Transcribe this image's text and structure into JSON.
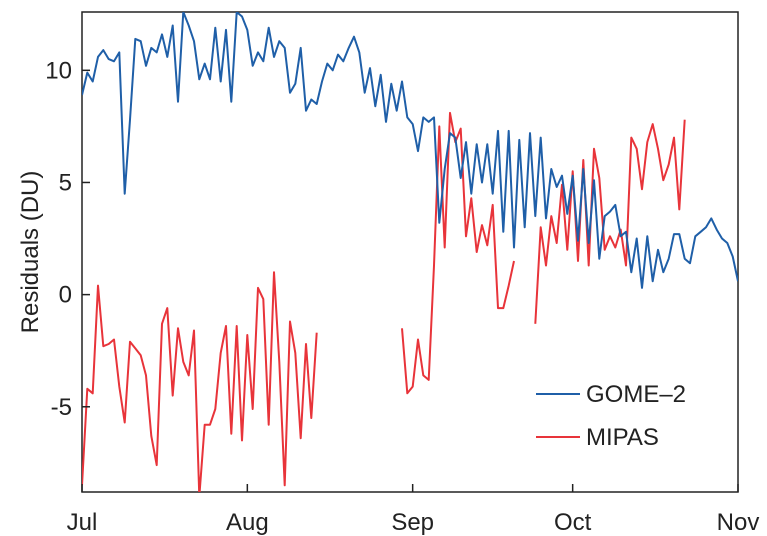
{
  "chart_data": {
    "type": "line",
    "title": "",
    "xlabel": "",
    "ylabel": "Residuals (DU)",
    "x_axis": {
      "range": [
        "2007-07-01",
        "2007-11-01"
      ],
      "ticks": [
        {
          "date": "2007-07-01",
          "label": "Jul"
        },
        {
          "date": "2007-08-01",
          "label": "Aug"
        },
        {
          "date": "2007-09-01",
          "label": "Sep"
        },
        {
          "date": "2007-10-01",
          "label": "Oct"
        },
        {
          "date": "2007-11-01",
          "label": "Nov"
        }
      ]
    },
    "y_axis": {
      "range": [
        -8.8,
        12.6
      ],
      "ticks": [
        -5,
        0,
        5,
        10
      ]
    },
    "grid": false,
    "legend_position": "bottom-right",
    "series": [
      {
        "name": "GOME–2",
        "color": "#1f5fa8",
        "points": [
          [
            "2007-07-01",
            8.9
          ],
          [
            "2007-07-02",
            9.9
          ],
          [
            "2007-07-03",
            9.5
          ],
          [
            "2007-07-04",
            10.6
          ],
          [
            "2007-07-05",
            10.9
          ],
          [
            "2007-07-06",
            10.5
          ],
          [
            "2007-07-07",
            10.4
          ],
          [
            "2007-07-08",
            10.8
          ],
          [
            "2007-07-09",
            4.5
          ],
          [
            "2007-07-10",
            7.8
          ],
          [
            "2007-07-11",
            11.4
          ],
          [
            "2007-07-12",
            11.3
          ],
          [
            "2007-07-13",
            10.2
          ],
          [
            "2007-07-14",
            11.0
          ],
          [
            "2007-07-15",
            10.8
          ],
          [
            "2007-07-16",
            11.6
          ],
          [
            "2007-07-17",
            10.6
          ],
          [
            "2007-07-18",
            12.0
          ],
          [
            "2007-07-19",
            8.6
          ],
          [
            "2007-07-20",
            12.6
          ],
          [
            "2007-07-21",
            12.0
          ],
          [
            "2007-07-22",
            11.3
          ],
          [
            "2007-07-23",
            9.6
          ],
          [
            "2007-07-24",
            10.3
          ],
          [
            "2007-07-25",
            9.6
          ],
          [
            "2007-07-26",
            11.9
          ],
          [
            "2007-07-27",
            9.5
          ],
          [
            "2007-07-28",
            11.8
          ],
          [
            "2007-07-29",
            8.6
          ],
          [
            "2007-07-30",
            12.6
          ],
          [
            "2007-07-31",
            12.4
          ],
          [
            "2007-08-01",
            11.8
          ],
          [
            "2007-08-02",
            10.2
          ],
          [
            "2007-08-03",
            10.8
          ],
          [
            "2007-08-04",
            10.4
          ],
          [
            "2007-08-05",
            11.9
          ],
          [
            "2007-08-06",
            10.6
          ],
          [
            "2007-08-07",
            11.3
          ],
          [
            "2007-08-08",
            11.0
          ],
          [
            "2007-08-09",
            9.0
          ],
          [
            "2007-08-10",
            9.4
          ],
          [
            "2007-08-11",
            11.0
          ],
          [
            "2007-08-12",
            8.2
          ],
          [
            "2007-08-13",
            8.7
          ],
          [
            "2007-08-14",
            8.5
          ],
          [
            "2007-08-15",
            9.5
          ],
          [
            "2007-08-16",
            10.3
          ],
          [
            "2007-08-17",
            10.0
          ],
          [
            "2007-08-18",
            10.7
          ],
          [
            "2007-08-19",
            10.4
          ],
          [
            "2007-08-20",
            11.0
          ],
          [
            "2007-08-21",
            11.5
          ],
          [
            "2007-08-22",
            10.8
          ],
          [
            "2007-08-23",
            9.0
          ],
          [
            "2007-08-24",
            10.1
          ],
          [
            "2007-08-25",
            8.4
          ],
          [
            "2007-08-26",
            9.8
          ],
          [
            "2007-08-27",
            7.7
          ],
          [
            "2007-08-28",
            9.4
          ],
          [
            "2007-08-29",
            8.2
          ],
          [
            "2007-08-30",
            9.5
          ],
          [
            "2007-08-31",
            7.9
          ],
          [
            "2007-09-01",
            7.6
          ],
          [
            "2007-09-02",
            6.4
          ],
          [
            "2007-09-03",
            7.9
          ],
          [
            "2007-09-04",
            7.7
          ],
          [
            "2007-09-05",
            7.9
          ],
          [
            "2007-09-06",
            3.2
          ],
          [
            "2007-09-07",
            5.6
          ],
          [
            "2007-09-08",
            7.2
          ],
          [
            "2007-09-09",
            7.0
          ],
          [
            "2007-09-10",
            5.2
          ],
          [
            "2007-09-11",
            6.8
          ],
          [
            "2007-09-12",
            4.5
          ],
          [
            "2007-09-13",
            6.7
          ],
          [
            "2007-09-14",
            5.0
          ],
          [
            "2007-09-15",
            6.7
          ],
          [
            "2007-09-16",
            4.5
          ],
          [
            "2007-09-17",
            7.3
          ],
          [
            "2007-09-18",
            2.8
          ],
          [
            "2007-09-19",
            7.3
          ],
          [
            "2007-09-20",
            2.1
          ],
          [
            "2007-09-21",
            6.9
          ],
          [
            "2007-09-22",
            3.0
          ],
          [
            "2007-09-23",
            7.2
          ],
          [
            "2007-09-24",
            3.5
          ],
          [
            "2007-09-25",
            7.0
          ],
          [
            "2007-09-26",
            3.4
          ],
          [
            "2007-09-27",
            5.6
          ],
          [
            "2007-09-28",
            4.8
          ],
          [
            "2007-09-29",
            5.3
          ],
          [
            "2007-09-30",
            3.6
          ],
          [
            "2007-10-01",
            5.3
          ],
          [
            "2007-10-02",
            2.4
          ],
          [
            "2007-10-03",
            5.6
          ],
          [
            "2007-10-04",
            2.3
          ],
          [
            "2007-10-05",
            5.1
          ],
          [
            "2007-10-06",
            1.6
          ],
          [
            "2007-10-07",
            3.5
          ],
          [
            "2007-10-08",
            3.7
          ],
          [
            "2007-10-09",
            4.0
          ],
          [
            "2007-10-10",
            2.6
          ],
          [
            "2007-10-11",
            2.8
          ],
          [
            "2007-10-12",
            1.0
          ],
          [
            "2007-10-13",
            2.5
          ],
          [
            "2007-10-14",
            0.3
          ],
          [
            "2007-10-15",
            2.6
          ],
          [
            "2007-10-16",
            0.6
          ],
          [
            "2007-10-17",
            2.0
          ],
          [
            "2007-10-18",
            1.0
          ],
          [
            "2007-10-19",
            1.6
          ],
          [
            "2007-10-20",
            2.7
          ],
          [
            "2007-10-21",
            2.7
          ],
          [
            "2007-10-22",
            1.6
          ],
          [
            "2007-10-23",
            1.4
          ],
          [
            "2007-10-24",
            2.6
          ],
          [
            "2007-10-25",
            2.8
          ],
          [
            "2007-10-26",
            3.0
          ],
          [
            "2007-10-27",
            3.4
          ],
          [
            "2007-10-28",
            2.9
          ],
          [
            "2007-10-29",
            2.5
          ],
          [
            "2007-10-30",
            2.3
          ],
          [
            "2007-10-31",
            1.7
          ],
          [
            "2007-11-01",
            0.6
          ]
        ]
      },
      {
        "name": "MIPAS",
        "color": "#e8343a",
        "segments": [
          [
            [
              "2007-07-01",
              -8.5
            ],
            [
              "2007-07-02",
              -4.2
            ],
            [
              "2007-07-03",
              -4.4
            ],
            [
              "2007-07-04",
              0.4
            ],
            [
              "2007-07-05",
              -2.3
            ],
            [
              "2007-07-06",
              -2.2
            ],
            [
              "2007-07-07",
              -2.0
            ],
            [
              "2007-07-08",
              -4.1
            ],
            [
              "2007-07-09",
              -5.7
            ],
            [
              "2007-07-10",
              -2.1
            ],
            [
              "2007-07-11",
              -2.4
            ],
            [
              "2007-07-12",
              -2.7
            ],
            [
              "2007-07-13",
              -3.6
            ],
            [
              "2007-07-14",
              -6.3
            ],
            [
              "2007-07-15",
              -7.6
            ],
            [
              "2007-07-16",
              -1.3
            ],
            [
              "2007-07-17",
              -0.6
            ],
            [
              "2007-07-18",
              -4.5
            ],
            [
              "2007-07-19",
              -1.5
            ],
            [
              "2007-07-20",
              -3.0
            ],
            [
              "2007-07-21",
              -3.6
            ],
            [
              "2007-07-22",
              -1.6
            ],
            [
              "2007-07-23",
              -9.0
            ],
            [
              "2007-07-24",
              -5.8
            ],
            [
              "2007-07-25",
              -5.8
            ],
            [
              "2007-07-26",
              -5.1
            ],
            [
              "2007-07-27",
              -2.6
            ],
            [
              "2007-07-28",
              -1.4
            ],
            [
              "2007-07-29",
              -6.2
            ],
            [
              "2007-07-30",
              -1.4
            ],
            [
              "2007-07-31",
              -6.5
            ],
            [
              "2007-08-01",
              -1.8
            ],
            [
              "2007-08-02",
              -5.1
            ],
            [
              "2007-08-03",
              0.3
            ],
            [
              "2007-08-04",
              -0.2
            ],
            [
              "2007-08-05",
              -5.8
            ],
            [
              "2007-08-06",
              1.0
            ],
            [
              "2007-08-07",
              -3.0
            ],
            [
              "2007-08-08",
              -8.5
            ],
            [
              "2007-08-09",
              -1.2
            ],
            [
              "2007-08-10",
              -2.6
            ],
            [
              "2007-08-11",
              -6.4
            ],
            [
              "2007-08-12",
              -2.2
            ],
            [
              "2007-08-13",
              -5.5
            ],
            [
              "2007-08-14",
              -1.7
            ]
          ],
          [
            [
              "2007-08-30",
              -1.5
            ],
            [
              "2007-08-31",
              -4.4
            ],
            [
              "2007-09-01",
              -4.1
            ],
            [
              "2007-09-02",
              -2.0
            ],
            [
              "2007-09-03",
              -3.6
            ],
            [
              "2007-09-04",
              -3.8
            ],
            [
              "2007-09-05",
              1.3
            ],
            [
              "2007-09-06",
              7.5
            ],
            [
              "2007-09-07",
              2.1
            ],
            [
              "2007-09-08",
              8.1
            ],
            [
              "2007-09-09",
              6.8
            ],
            [
              "2007-09-10",
              7.4
            ],
            [
              "2007-09-11",
              2.6
            ],
            [
              "2007-09-12",
              4.3
            ],
            [
              "2007-09-13",
              1.9
            ],
            [
              "2007-09-14",
              3.1
            ],
            [
              "2007-09-15",
              2.2
            ],
            [
              "2007-09-16",
              4.0
            ],
            [
              "2007-09-17",
              -0.6
            ],
            [
              "2007-09-18",
              -0.6
            ],
            [
              "2007-09-19",
              0.4
            ],
            [
              "2007-09-20",
              1.5
            ]
          ],
          [
            [
              "2007-09-24",
              -1.3
            ],
            [
              "2007-09-25",
              3.0
            ],
            [
              "2007-09-26",
              1.3
            ],
            [
              "2007-09-27",
              3.5
            ],
            [
              "2007-09-28",
              2.3
            ],
            [
              "2007-09-29",
              4.9
            ],
            [
              "2007-09-30",
              2.0
            ],
            [
              "2007-10-01",
              5.5
            ],
            [
              "2007-10-02",
              1.5
            ],
            [
              "2007-10-03",
              6.0
            ],
            [
              "2007-10-04",
              1.3
            ],
            [
              "2007-10-05",
              6.5
            ],
            [
              "2007-10-06",
              5.2
            ],
            [
              "2007-10-07",
              2.0
            ],
            [
              "2007-10-08",
              2.6
            ],
            [
              "2007-10-09",
              2.1
            ],
            [
              "2007-10-10",
              2.9
            ],
            [
              "2007-10-11",
              1.3
            ],
            [
              "2007-10-12",
              7.0
            ],
            [
              "2007-10-13",
              6.5
            ],
            [
              "2007-10-14",
              4.7
            ],
            [
              "2007-10-15",
              6.8
            ],
            [
              "2007-10-16",
              7.6
            ],
            [
              "2007-10-17",
              6.5
            ],
            [
              "2007-10-18",
              5.1
            ],
            [
              "2007-10-19",
              5.8
            ],
            [
              "2007-10-20",
              7.0
            ],
            [
              "2007-10-21",
              3.8
            ],
            [
              "2007-10-22",
              7.8
            ]
          ]
        ]
      }
    ]
  }
}
